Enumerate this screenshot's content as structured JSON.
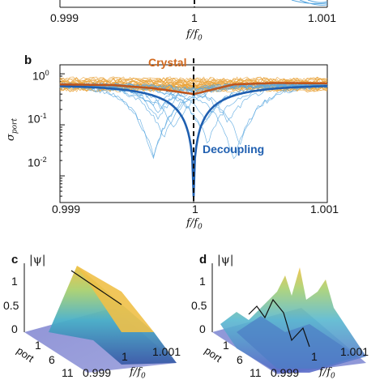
{
  "panel_a_partial": {
    "xticks": [
      "0.999",
      "1",
      "1.001"
    ],
    "xlabel_main": "f/f",
    "xlabel_sub": "0"
  },
  "panel_b": {
    "letter": "b",
    "chart_data": {
      "type": "line",
      "xlabel": "f/f0",
      "ylabel": "σ_port",
      "xlim": [
        0.999,
        1.001
      ],
      "ylim_log": [
        0.003,
        1.5
      ],
      "yscale": "log",
      "xticks": [
        "0.999",
        "1",
        "1.001"
      ],
      "yticks": [
        "10^0",
        "10^-1",
        "10^-2"
      ],
      "dashed_vline_at": 1.0,
      "series": [
        {
          "name": "Crystal",
          "color": "#c0551b",
          "x": [
            0.999,
            0.9994,
            0.9997,
            0.99995,
            1.0,
            1.0003,
            1.0006,
            1.001
          ],
          "y": [
            0.62,
            0.6,
            0.52,
            0.42,
            0.4,
            0.62,
            0.66,
            0.65
          ]
        },
        {
          "name": "Decoupling",
          "color": "#1f5fb0",
          "x": [
            0.999,
            0.9994,
            0.9997,
            0.9999,
            0.99997,
            1.0,
            1.00003,
            1.0001,
            1.0003,
            1.0006,
            1.001
          ],
          "y": [
            0.62,
            0.5,
            0.28,
            0.09,
            0.02,
            0.0035,
            0.02,
            0.09,
            0.28,
            0.5,
            0.62
          ]
        }
      ]
    },
    "labels": {
      "crystal": "Crystal",
      "decoupling": "Decoupling"
    },
    "ylabel_main": "σ",
    "ylabel_sub": "port",
    "ytick_base": "10",
    "ytick_exps": [
      "0",
      "-1",
      "-2"
    ],
    "xticks": [
      "0.999",
      "1",
      "1.001"
    ],
    "xlabel_main": "f/f",
    "xlabel_sub": "0"
  },
  "panel_c": {
    "letter": "c",
    "zlabel": "|ψ|",
    "zticks": [
      "1",
      "0.5",
      "0"
    ],
    "port_label": "port",
    "port_ticks": [
      "1",
      "6",
      "11"
    ],
    "f_ticks": [
      "0.999",
      "1",
      "1.001"
    ],
    "f_label_main": "f/f",
    "f_label_sub": "0"
  },
  "panel_d": {
    "letter": "d",
    "zlabel": "|ψ|",
    "zticks": [
      "1",
      "0.5",
      "0"
    ],
    "port_label": "port",
    "port_ticks": [
      "1",
      "6",
      "11"
    ],
    "f_ticks": [
      "0.999",
      "1",
      "1.001"
    ],
    "f_label_main": "f/f",
    "f_label_sub": "0"
  },
  "colors": {
    "crystal": "#c0551b",
    "crystal_band": "#e8a33a",
    "decoupling": "#1f5fb0",
    "decoupling_band": "#5aa8e0"
  }
}
